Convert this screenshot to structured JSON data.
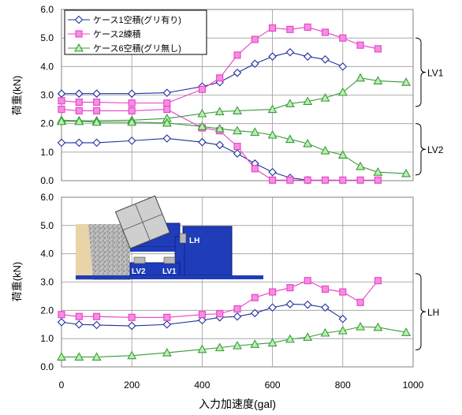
{
  "chart_data": [
    {
      "type": "line",
      "ylabel": "荷重(kN)",
      "xlabel": "",
      "xlim": [
        0,
        1000
      ],
      "ylim": [
        0,
        6
      ],
      "yticks": [
        "0.0",
        "1.0",
        "2.0",
        "3.0",
        "4.0",
        "5.0",
        "6.0"
      ],
      "grid": true,
      "legend_position": "top-left",
      "legend": [
        {
          "label": "ケース1空積(グリ有り)",
          "marker": "diamond",
          "color": "#1f2f9a"
        },
        {
          "label": "ケース2練積",
          "marker": "square",
          "color": "#e83fc8"
        },
        {
          "label": "ケース6空積(グリ無し)",
          "marker": "triangle",
          "color": "#3a9a3a"
        }
      ],
      "series": [
        {
          "group": "LV1",
          "marker": "diamond",
          "color": "#1f2f9a",
          "x": [
            0,
            50,
            100,
            200,
            300,
            400,
            450,
            500,
            550,
            600,
            650,
            700,
            750,
            800
          ],
          "y": [
            3.05,
            3.05,
            3.05,
            3.05,
            3.08,
            3.3,
            3.45,
            3.78,
            4.1,
            4.35,
            4.5,
            4.35,
            4.25,
            4.0
          ]
        },
        {
          "group": "LV1",
          "marker": "square",
          "color": "#e83fc8",
          "x": [
            0,
            50,
            100,
            200,
            300,
            400,
            450,
            500,
            550,
            600,
            650,
            700,
            750,
            800,
            850,
            900
          ],
          "y": [
            2.8,
            2.75,
            2.75,
            2.72,
            2.72,
            3.2,
            3.6,
            4.4,
            4.95,
            5.35,
            5.3,
            5.38,
            5.2,
            5.0,
            4.75,
            4.62
          ]
        },
        {
          "group": "LV1",
          "marker": "triangle",
          "color": "#3a9a3a",
          "x": [
            0,
            50,
            100,
            200,
            300,
            400,
            450,
            500,
            600,
            650,
            700,
            750,
            800,
            850,
            900,
            980
          ],
          "y": [
            2.12,
            2.1,
            2.1,
            2.12,
            2.18,
            2.35,
            2.42,
            2.45,
            2.5,
            2.7,
            2.78,
            2.9,
            3.1,
            3.6,
            3.5,
            3.45
          ]
        },
        {
          "group": "LV2",
          "marker": "diamond",
          "color": "#1f2f9a",
          "x": [
            0,
            50,
            100,
            200,
            300,
            400,
            450,
            500,
            550,
            600,
            650,
            700
          ],
          "y": [
            1.33,
            1.33,
            1.33,
            1.4,
            1.48,
            1.35,
            1.25,
            0.95,
            0.6,
            0.3,
            0.1,
            0.02
          ]
        },
        {
          "group": "LV2",
          "marker": "square",
          "color": "#e83fc8",
          "x": [
            0,
            50,
            100,
            200,
            300,
            400,
            450,
            500,
            550,
            600,
            650,
            700,
            750,
            800,
            850,
            900
          ],
          "y": [
            2.5,
            2.45,
            2.45,
            2.45,
            2.5,
            1.85,
            1.75,
            1.2,
            0.42,
            0.02,
            0.02,
            0.02,
            0.02,
            0.02,
            0.02,
            0.02
          ]
        },
        {
          "group": "LV2",
          "marker": "triangle",
          "color": "#3a9a3a",
          "x": [
            0,
            50,
            100,
            200,
            300,
            400,
            450,
            500,
            550,
            600,
            650,
            700,
            750,
            800,
            850,
            900,
            980
          ],
          "y": [
            2.08,
            2.08,
            2.05,
            2.05,
            2.02,
            1.9,
            1.82,
            1.75,
            1.7,
            1.6,
            1.45,
            1.3,
            1.05,
            0.9,
            0.5,
            0.3,
            0.25
          ]
        }
      ],
      "annotations": [
        "LV1",
        "LV2"
      ]
    },
    {
      "type": "line",
      "ylabel": "荷重(kN)",
      "xlabel": "入力加速度(gal)",
      "xlim": [
        0,
        1000
      ],
      "ylim": [
        0,
        6
      ],
      "xticks": [
        "0",
        "200",
        "400",
        "600",
        "800",
        "1000"
      ],
      "yticks": [
        "0.0",
        "1.0",
        "2.0",
        "3.0",
        "4.0",
        "5.0",
        "6.0"
      ],
      "grid": true,
      "series": [
        {
          "group": "LH",
          "marker": "diamond",
          "color": "#1f2f9a",
          "x": [
            0,
            50,
            100,
            200,
            300,
            400,
            450,
            500,
            550,
            600,
            650,
            700,
            750,
            800
          ],
          "y": [
            1.58,
            1.5,
            1.48,
            1.45,
            1.5,
            1.65,
            1.75,
            1.78,
            1.9,
            2.1,
            2.22,
            2.2,
            2.1,
            1.7
          ]
        },
        {
          "group": "LH",
          "marker": "square",
          "color": "#e83fc8",
          "x": [
            0,
            50,
            100,
            200,
            300,
            400,
            450,
            500,
            550,
            600,
            650,
            700,
            750,
            800,
            850,
            900
          ],
          "y": [
            1.85,
            1.78,
            1.78,
            1.75,
            1.75,
            1.85,
            1.88,
            2.05,
            2.45,
            2.65,
            2.8,
            3.05,
            2.75,
            2.65,
            2.28,
            3.05
          ]
        },
        {
          "group": "LH",
          "marker": "triangle",
          "color": "#3a9a3a",
          "x": [
            0,
            50,
            100,
            200,
            300,
            400,
            450,
            500,
            550,
            600,
            650,
            700,
            750,
            800,
            850,
            900,
            980
          ],
          "y": [
            0.35,
            0.35,
            0.35,
            0.4,
            0.5,
            0.62,
            0.68,
            0.75,
            0.8,
            0.85,
            0.98,
            1.05,
            1.2,
            1.28,
            1.42,
            1.4,
            1.22
          ]
        }
      ],
      "annotations": [
        "LH"
      ],
      "inset_labels": [
        "LH",
        "LV2",
        "LV1"
      ]
    }
  ]
}
